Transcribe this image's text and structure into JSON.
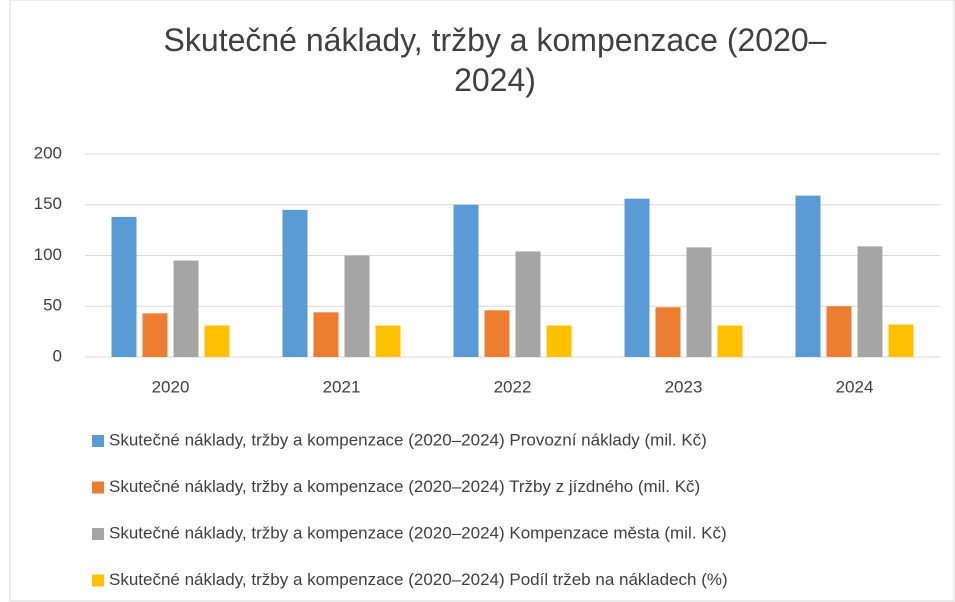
{
  "chart_data": {
    "type": "bar",
    "title": "Skutečné náklady, tržby a kompenzace (2020–2024)",
    "categories": [
      "2020",
      "2021",
      "2022",
      "2023",
      "2024"
    ],
    "series": [
      {
        "name": "Skutečné náklady, tržby a kompenzace (2020–2024) Provozní náklady (mil. Kč)",
        "color": "#5b9bd5",
        "values": [
          138,
          145,
          150,
          156,
          159
        ]
      },
      {
        "name": "Skutečné náklady, tržby a kompenzace (2020–2024) Tržby z jízdného (mil. Kč)",
        "color": "#ed7d31",
        "values": [
          43,
          44,
          46,
          49,
          50
        ]
      },
      {
        "name": "Skutečné náklady, tržby a kompenzace (2020–2024) Kompenzace města (mil. Kč)",
        "color": "#a5a5a5",
        "values": [
          95,
          100,
          104,
          108,
          109
        ]
      },
      {
        "name": "Skutečné náklady, tržby a kompenzace (2020–2024) Podíl tržeb na nákladech (%)",
        "color": "#ffc000",
        "values": [
          31,
          31,
          31,
          31,
          32
        ]
      }
    ],
    "ylim": [
      0,
      200
    ],
    "yticks": [
      0,
      50,
      100,
      150,
      200
    ],
    "grid": true,
    "legend": "bottom"
  }
}
